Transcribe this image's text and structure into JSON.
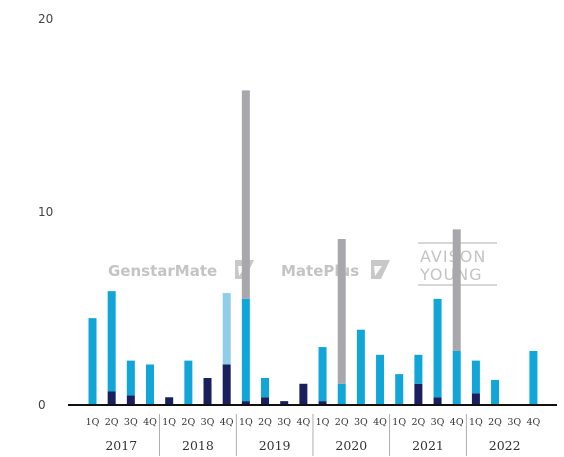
{
  "chart_data": {
    "type": "bar",
    "stacked": true,
    "y_axis": {
      "min": 0,
      "max": 20,
      "ticks": [
        "0",
        "10",
        "20"
      ]
    },
    "x_axis": {
      "quarter_labels": [
        "1Q",
        "2Q",
        "3Q",
        "4Q"
      ],
      "years": [
        "2017",
        "2018",
        "2019",
        "2020",
        "2021",
        "2022"
      ]
    },
    "grid": false,
    "legend": "none",
    "colors": {
      "dark_navy": "#1a1f5e",
      "cyan": "#11a5d8",
      "light_blue": "#8fcde8",
      "grey": "#a7a7ac",
      "axis": "#111111"
    },
    "watermarks": [
      "GenstarMate",
      "MatePlus",
      "AVISON",
      "YOUNG"
    ],
    "series_order": [
      "dark_navy",
      "cyan",
      "light_blue",
      "grey"
    ],
    "values": [
      {
        "dark_navy": 0.0,
        "cyan": 4.5,
        "light_blue": 0.0,
        "grey": 0.0
      },
      {
        "dark_navy": 0.7,
        "cyan": 5.2,
        "light_blue": 0.0,
        "grey": 0.0
      },
      {
        "dark_navy": 0.5,
        "cyan": 1.8,
        "light_blue": 0.0,
        "grey": 0.0
      },
      {
        "dark_navy": 0.0,
        "cyan": 2.1,
        "light_blue": 0.0,
        "grey": 0.0
      },
      {
        "dark_navy": 0.4,
        "cyan": 0.0,
        "light_blue": 0.0,
        "grey": 0.0
      },
      {
        "dark_navy": 0.0,
        "cyan": 2.3,
        "light_blue": 0.0,
        "grey": 0.0
      },
      {
        "dark_navy": 1.4,
        "cyan": 0.0,
        "light_blue": 0.0,
        "grey": 0.0
      },
      {
        "dark_navy": 2.1,
        "cyan": 0.0,
        "light_blue": 3.7,
        "grey": 0.0
      },
      {
        "dark_navy": 0.2,
        "cyan": 5.3,
        "light_blue": 0.0,
        "grey": 10.8
      },
      {
        "dark_navy": 0.4,
        "cyan": 1.0,
        "light_blue": 0.0,
        "grey": 0.0
      },
      {
        "dark_navy": 0.2,
        "cyan": 0.0,
        "light_blue": 0.0,
        "grey": 0.0
      },
      {
        "dark_navy": 1.1,
        "cyan": 0.0,
        "light_blue": 0.0,
        "grey": 0.0
      },
      {
        "dark_navy": 0.2,
        "cyan": 2.8,
        "light_blue": 0.0,
        "grey": 0.0
      },
      {
        "dark_navy": 0.0,
        "cyan": 1.1,
        "light_blue": 0.0,
        "grey": 7.5
      },
      {
        "dark_navy": 0.0,
        "cyan": 3.9,
        "light_blue": 0.0,
        "grey": 0.0
      },
      {
        "dark_navy": 0.0,
        "cyan": 2.6,
        "light_blue": 0.0,
        "grey": 0.0
      },
      {
        "dark_navy": 0.0,
        "cyan": 1.6,
        "light_blue": 0.0,
        "grey": 0.0
      },
      {
        "dark_navy": 1.1,
        "cyan": 1.5,
        "light_blue": 0.0,
        "grey": 0.0
      },
      {
        "dark_navy": 0.4,
        "cyan": 5.1,
        "light_blue": 0.0,
        "grey": 0.0
      },
      {
        "dark_navy": 0.0,
        "cyan": 2.8,
        "light_blue": 0.0,
        "grey": 6.3
      },
      {
        "dark_navy": 0.6,
        "cyan": 1.7,
        "light_blue": 0.0,
        "grey": 0.0
      },
      {
        "dark_navy": 0.0,
        "cyan": 1.3,
        "light_blue": 0.0,
        "grey": 0.0
      },
      {
        "dark_navy": 0.0,
        "cyan": 0.0,
        "light_blue": 0.0,
        "grey": 0.0
      },
      {
        "dark_navy": 0.0,
        "cyan": 2.8,
        "light_blue": 0.0,
        "grey": 0.0
      }
    ]
  }
}
